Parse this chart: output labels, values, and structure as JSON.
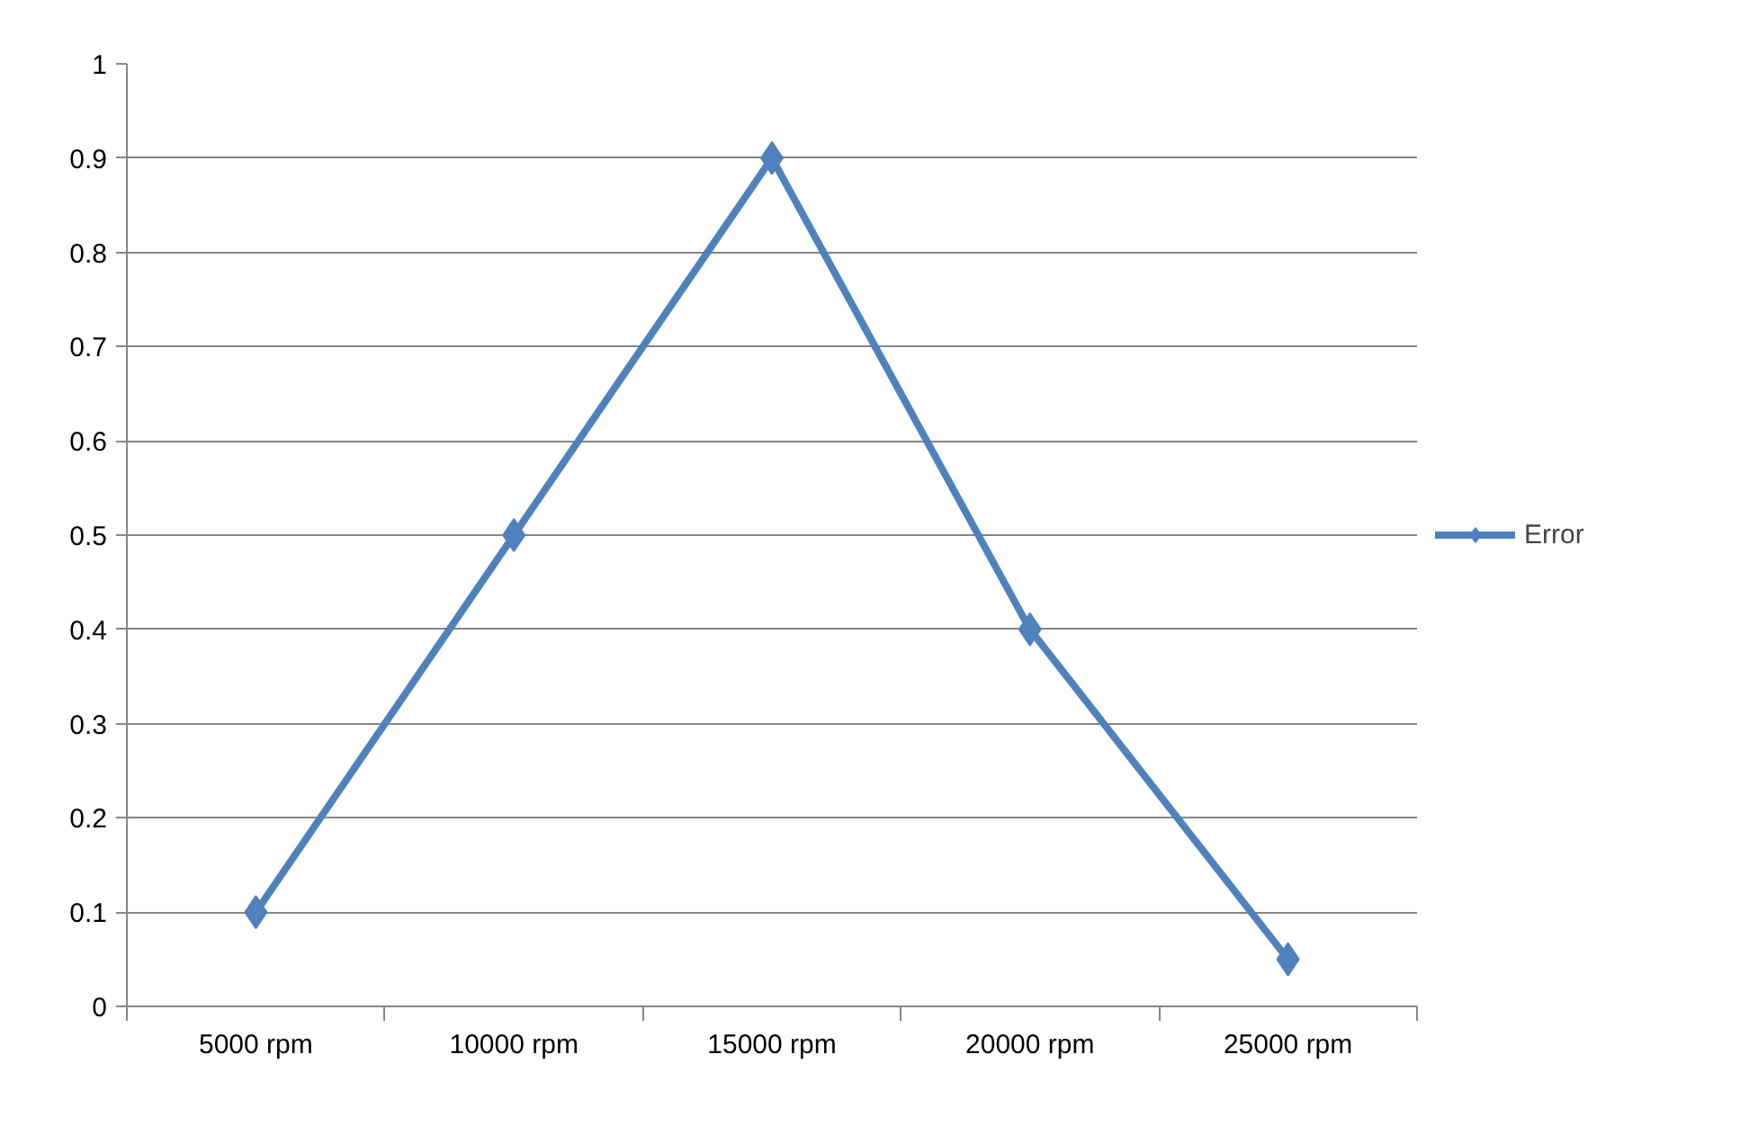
{
  "chart_data": {
    "type": "line",
    "categories": [
      "5000 rpm",
      "10000 rpm",
      "15000 rpm",
      "20000 rpm",
      "25000 rpm"
    ],
    "series": [
      {
        "name": "Error",
        "color": "#4f81bd",
        "values": [
          0.1,
          0.5,
          0.9,
          0.4,
          0.05
        ]
      }
    ],
    "ylim": [
      0,
      1
    ],
    "yticks": [
      0,
      0.1,
      0.2,
      0.3,
      0.4,
      0.5,
      0.6,
      0.7,
      0.8,
      0.9,
      1
    ],
    "grid": "y",
    "legend": "right",
    "marker": "diamond",
    "line_style": "solid"
  }
}
